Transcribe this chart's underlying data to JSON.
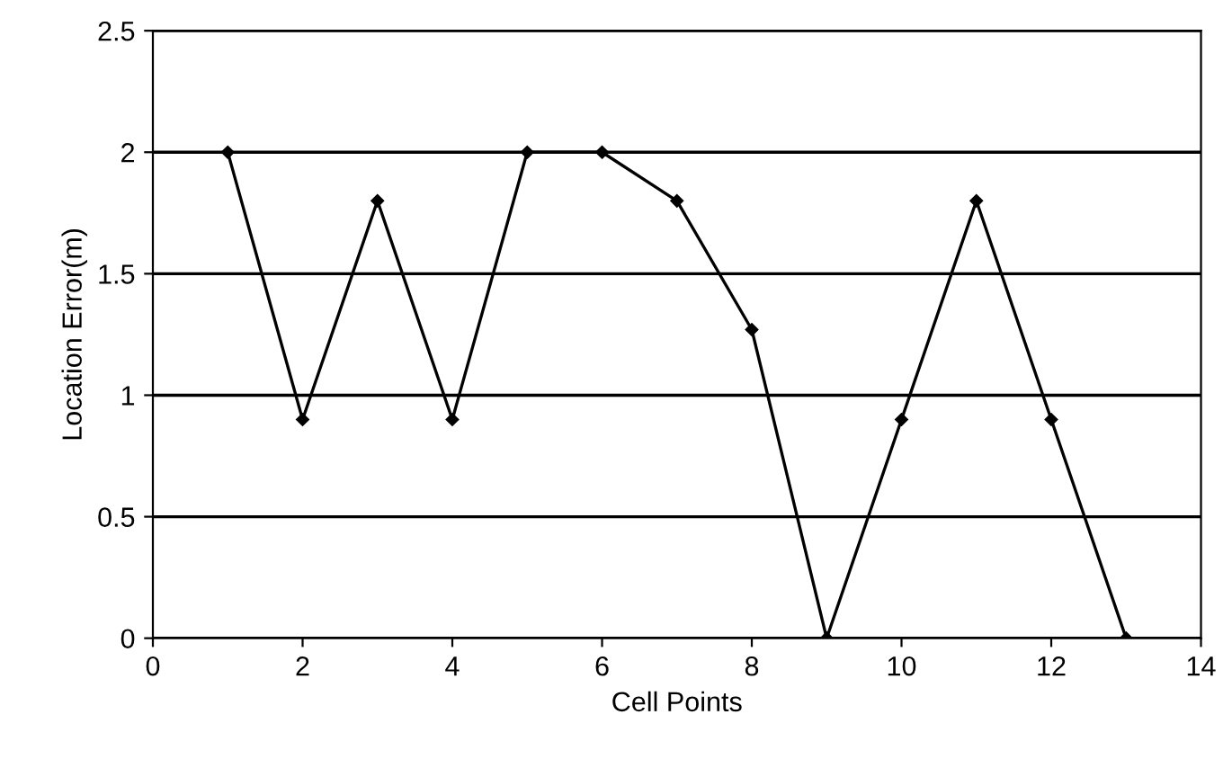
{
  "chart_data": {
    "type": "line",
    "xlabel": "Cell Points",
    "ylabel": "Location Error(m)",
    "x": [
      1,
      2,
      3,
      4,
      5,
      6,
      7,
      8,
      9,
      10,
      11,
      12,
      13
    ],
    "series": [
      {
        "color": "#000000",
        "values": [
          2,
          0.9,
          1.8,
          0.9,
          2,
          2,
          1.8,
          1.27,
          0,
          0.9,
          1.8,
          0.9,
          0
        ]
      }
    ],
    "xlim": [
      0,
      14
    ],
    "xticks": [
      0,
      2,
      4,
      6,
      8,
      10,
      12,
      14
    ],
    "ylim": [
      0,
      2.5
    ],
    "yticks": [
      0,
      0.5,
      1,
      1.5,
      2,
      2.5
    ],
    "grid": "y",
    "marker": "diamond",
    "line_style": "solid"
  }
}
